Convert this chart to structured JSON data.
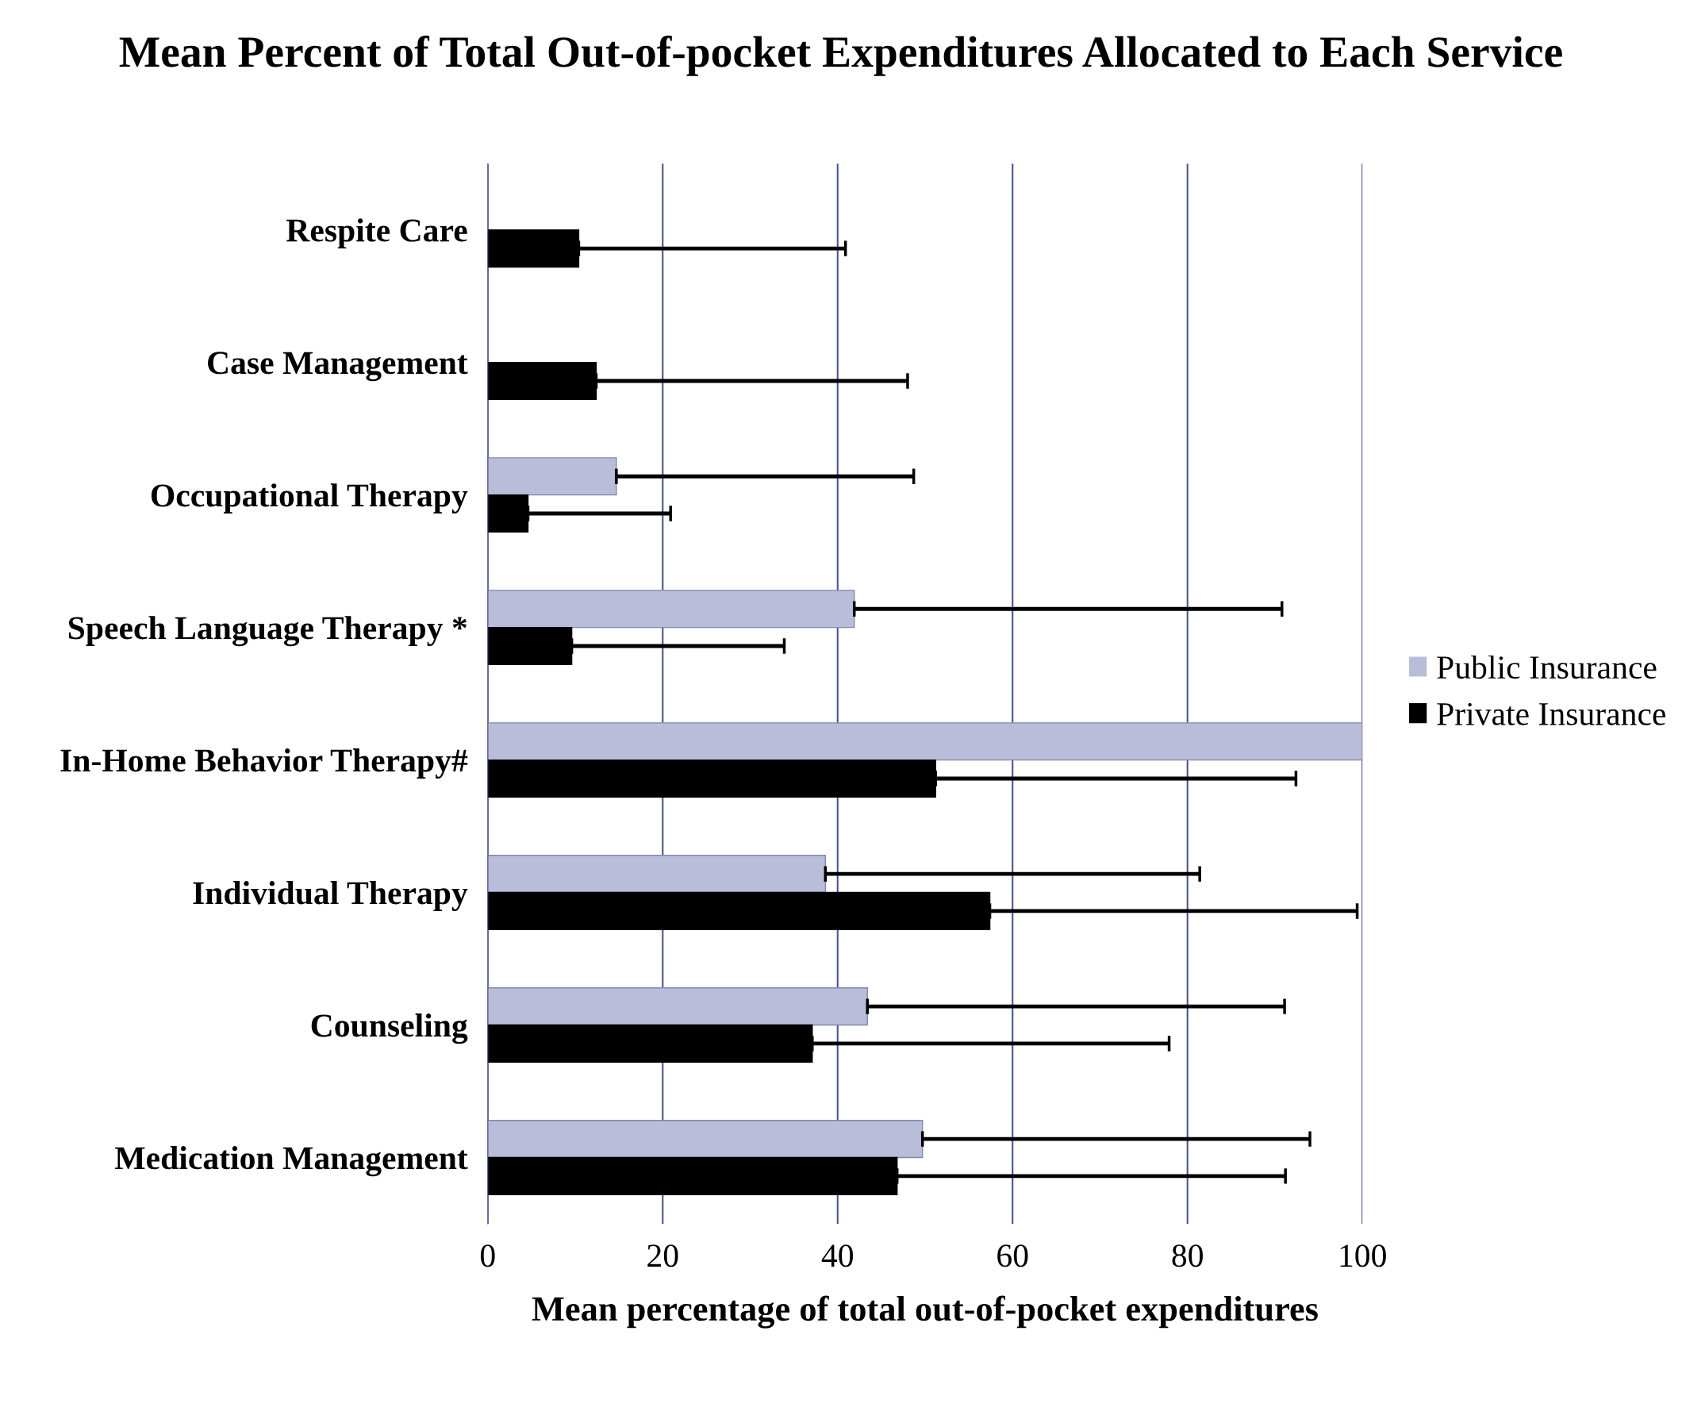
{
  "chart_data": {
    "type": "bar",
    "orientation": "horizontal",
    "title": "Mean Percent of Total Out-of-pocket Expenditures Allocated to Each Service",
    "xlabel": "Mean percentage of total out-of-pocket expenditures",
    "categories": [
      "Respite Care",
      "Case Management",
      "Occupational Therapy",
      "Speech Language Therapy *",
      "In-Home Behavior Therapy#",
      "Individual Therapy",
      "Counseling",
      "Medication Management"
    ],
    "series": [
      {
        "name": "Public Insurance",
        "color": "#b9bdd9",
        "values": [
          null,
          null,
          14.7,
          41.9,
          100,
          38.6,
          43.4,
          49.7
        ],
        "errors": [
          null,
          null,
          [
            14.7,
            48.7
          ],
          [
            41.9,
            90.8
          ],
          null,
          [
            38.6,
            81.4
          ],
          [
            43.4,
            91.1
          ],
          [
            49.7,
            94.0
          ]
        ]
      },
      {
        "name": "Private Insurance",
        "color": "#000000",
        "values": [
          10.4,
          12.4,
          4.6,
          9.6,
          51.2,
          57.4,
          37.1,
          46.8
        ],
        "errors": [
          [
            10.4,
            40.9
          ],
          [
            12.4,
            48.0
          ],
          [
            4.6,
            20.9
          ],
          [
            9.6,
            33.9
          ],
          [
            51.2,
            92.4
          ],
          [
            57.4,
            99.4
          ],
          [
            37.1,
            77.9
          ],
          [
            46.8,
            91.2
          ]
        ]
      }
    ],
    "xlim": [
      0,
      100
    ],
    "xticks": [
      0,
      20,
      40,
      60,
      80,
      100
    ],
    "grid": "x",
    "legend": "right"
  }
}
